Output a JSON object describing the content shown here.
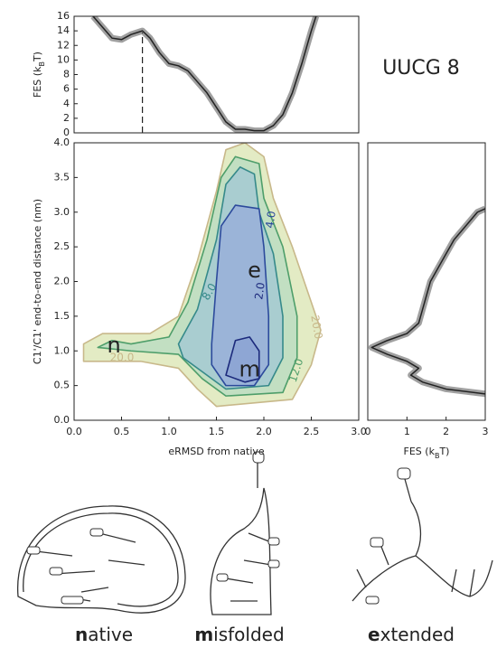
{
  "chart_data": [
    {
      "type": "line",
      "title": "UUCG 8",
      "ylabel": [
        "FES (k",
        "B",
        "T)"
      ],
      "xlim": [
        0,
        3
      ],
      "ylim": [
        0,
        16
      ],
      "yticks": [
        0,
        2,
        4,
        6,
        8,
        10,
        12,
        14,
        16
      ],
      "x": [
        0.2,
        0.3,
        0.4,
        0.5,
        0.6,
        0.72,
        0.8,
        0.9,
        1.0,
        1.1,
        1.2,
        1.3,
        1.4,
        1.5,
        1.6,
        1.7,
        1.8,
        1.9,
        2.0,
        2.1,
        2.2,
        2.3,
        2.4,
        2.5,
        2.55
      ],
      "values": [
        16,
        14.5,
        13,
        12.8,
        13.5,
        14,
        13,
        11,
        9.5,
        9.2,
        8.5,
        7,
        5.5,
        3.5,
        1.5,
        0.5,
        0.5,
        0.3,
        0.3,
        1.0,
        2.5,
        5.5,
        9.5,
        14,
        16
      ],
      "color": "#222222",
      "band_color": "#a0a0a0",
      "vline_x": 0.72
    },
    {
      "type": "contour",
      "xlabel": "eRMSD from native",
      "ylabel": [
        "C1'/C1' end-to-end distance (nm)"
      ],
      "xlim": [
        0,
        3
      ],
      "ylim": [
        0,
        4
      ],
      "xticks": [
        {
          "value": 0,
          "label": "0.0"
        },
        {
          "value": 0.5,
          "label": "0.5"
        },
        {
          "value": 1,
          "label": "1.0"
        },
        {
          "value": 1.5,
          "label": "1.5"
        },
        {
          "value": 2,
          "label": "2.0"
        },
        {
          "value": 2.5,
          "label": "2.5"
        },
        {
          "value": 3,
          "label": "3.0"
        }
      ],
      "yticks": [
        {
          "value": 0,
          "label": "0.0"
        },
        {
          "value": 0.5,
          "label": "0.5"
        },
        {
          "value": 1,
          "label": "1.0"
        },
        {
          "value": 1.5,
          "label": "1.5"
        },
        {
          "value": 2,
          "label": "2.0"
        },
        {
          "value": 2.5,
          "label": "2.5"
        },
        {
          "value": 3,
          "label": "3.0"
        },
        {
          "value": 3.5,
          "label": "3.5"
        },
        {
          "value": 4,
          "label": "4.0"
        }
      ],
      "contours": [
        {
          "level": {
            "value": 20,
            "label": "20.0"
          },
          "fill": "#e3ebc4",
          "stroke": "#c8b88a",
          "x": [
            0.1,
            0.3,
            0.8,
            1.1,
            1.3,
            1.5,
            1.6,
            1.8,
            2.0,
            2.1,
            2.3,
            2.5,
            2.6,
            2.5,
            2.3,
            1.5,
            1.3,
            1.1,
            0.7,
            0.1
          ],
          "y": [
            1.1,
            1.25,
            1.25,
            1.5,
            2.3,
            3.3,
            3.9,
            4.0,
            3.8,
            3.2,
            2.5,
            1.7,
            1.3,
            0.8,
            0.3,
            0.2,
            0.45,
            0.75,
            0.85,
            0.85
          ]
        },
        {
          "level": {
            "value": 12,
            "label": "12.0"
          },
          "fill": "#c2dfc2",
          "stroke": "#4e9e6a",
          "x": [
            0.25,
            0.4,
            0.6,
            1.0,
            1.2,
            1.4,
            1.55,
            1.7,
            1.95,
            2.0,
            2.2,
            2.35,
            2.35,
            2.2,
            1.6,
            1.35,
            1.1,
            0.6
          ],
          "y": [
            1.05,
            1.15,
            1.1,
            1.2,
            1.7,
            2.6,
            3.5,
            3.8,
            3.7,
            3.2,
            2.5,
            1.5,
            0.9,
            0.4,
            0.35,
            0.6,
            0.95,
            1.0
          ]
        },
        {
          "level": {
            "value": 8,
            "label": "8.0"
          },
          "fill": "#a9cdd0",
          "stroke": "#368a8a",
          "x": [
            1.1,
            1.3,
            1.5,
            1.6,
            1.75,
            1.9,
            1.95,
            2.1,
            2.2,
            2.2,
            2.05,
            1.6,
            1.35,
            1.15
          ],
          "y": [
            1.1,
            1.6,
            2.6,
            3.4,
            3.65,
            3.55,
            3.0,
            2.4,
            1.5,
            0.9,
            0.5,
            0.45,
            0.7,
            0.9
          ]
        },
        {
          "level": {
            "value": 4,
            "label": "4.0"
          },
          "fill": "#9bb4d8",
          "stroke": "#2c4a9c",
          "x": [
            1.45,
            1.5,
            1.55,
            1.7,
            1.95,
            2.0,
            2.05,
            2.05,
            1.9,
            1.6,
            1.45
          ],
          "y": [
            1.1,
            2.0,
            2.8,
            3.1,
            3.05,
            2.5,
            1.5,
            0.8,
            0.5,
            0.5,
            0.8
          ]
        },
        {
          "level": {
            "value": 2,
            "label": "2.0"
          },
          "fill": "#8ea6d4",
          "stroke": "#1c2a7c",
          "x": [
            1.6,
            1.7,
            1.85,
            1.95,
            1.95,
            1.8
          ],
          "y": [
            0.65,
            1.15,
            1.2,
            1.0,
            0.6,
            0.55
          ]
        }
      ],
      "annotations": [
        {
          "text": "n",
          "x": 0.42,
          "y": 1.07
        },
        {
          "text": "e",
          "x": 1.9,
          "y": 2.15
        },
        {
          "text": "m",
          "x": 1.85,
          "y": 0.72
        }
      ]
    },
    {
      "type": "line",
      "xlabel": [
        "FES (k",
        "B",
        "T)"
      ],
      "xlim": [
        0,
        3
      ],
      "ylim": [
        0,
        4
      ],
      "xticks": [
        0,
        1,
        2,
        3
      ],
      "x": [
        3.0,
        2.8,
        2.5,
        2.2,
        2.0,
        1.8,
        1.6,
        1.5,
        1.4,
        1.3,
        1.0,
        0.5,
        0.1,
        0.5,
        1.0,
        1.3,
        1.1,
        1.4,
        2.0,
        3.0
      ],
      "values": [
        3.05,
        3.0,
        2.8,
        2.6,
        2.4,
        2.2,
        2.0,
        1.8,
        1.6,
        1.4,
        1.25,
        1.15,
        1.05,
        0.95,
        0.85,
        0.75,
        0.65,
        0.55,
        0.45,
        0.38
      ],
      "color": "#222222",
      "band_color": "#a0a0a0"
    }
  ],
  "captions": [
    {
      "bold": "n",
      "rest": "ative"
    },
    {
      "bold": "m",
      "rest": "isfolded"
    },
    {
      "bold": "e",
      "rest": "xtended"
    }
  ]
}
